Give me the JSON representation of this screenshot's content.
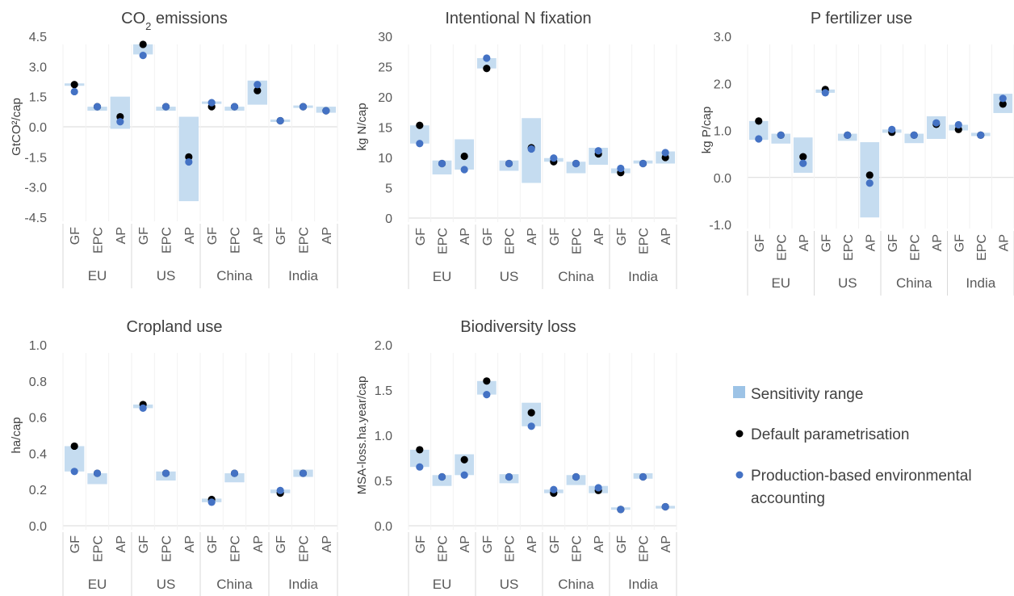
{
  "colors": {
    "range": "#c5dcf0",
    "legend_range": "#9dc3e6",
    "default": "#000000",
    "production": "#4472c4",
    "grid": "#d9d9d9",
    "text": "#595959"
  },
  "legend": {
    "range": "Sensitivity range",
    "default": "Default parametrisation",
    "production_line1": "Production-based environmental",
    "production_line2": "accounting"
  },
  "chart_data": [
    {
      "type": "scatter",
      "title": "CO",
      "title_sub": "2",
      "title_rest": " emissions",
      "ylabel": "GtCO²/cap",
      "ylim": [
        -4.5,
        4.5
      ],
      "yticks": [
        "4.5",
        "3.0",
        "1.5",
        "0.0",
        "-1.5",
        "-3.0",
        "-4.5"
      ],
      "groups": [
        "EU",
        "US",
        "China",
        "India"
      ],
      "categories": [
        "GF",
        "EPC",
        "AP"
      ],
      "sensitivity_range": [
        [
          2.1,
          2.1
        ],
        [
          0.8,
          1.0
        ],
        [
          -0.1,
          1.5
        ],
        [
          3.6,
          4.1
        ],
        [
          0.8,
          1.0
        ],
        [
          -3.7,
          0.5
        ],
        [
          1.2,
          1.2
        ],
        [
          0.8,
          1.0
        ],
        [
          1.1,
          2.3
        ],
        [
          0.3,
          0.3
        ],
        [
          1.0,
          1.0
        ],
        [
          0.7,
          1.0
        ]
      ],
      "default_parametrisation": [
        2.1,
        1.0,
        0.5,
        4.1,
        1.0,
        -1.5,
        1.0,
        1.0,
        1.8,
        0.3,
        1.0,
        0.8
      ],
      "production_based": [
        1.75,
        1.0,
        0.25,
        3.55,
        1.0,
        -1.75,
        1.2,
        1.0,
        2.1,
        0.3,
        1.0,
        0.8
      ]
    },
    {
      "type": "scatter",
      "title": "Intentional N fixation",
      "ylabel": "kg N/cap",
      "ylim": [
        0,
        30
      ],
      "yticks": [
        "30",
        "25",
        "20",
        "15",
        "10",
        "5",
        "0"
      ],
      "groups": [
        "EU",
        "US",
        "China",
        "India"
      ],
      "categories": [
        "GF",
        "EPC",
        "AP"
      ],
      "sensitivity_range": [
        [
          12.3,
          15.3
        ],
        [
          7.2,
          9.5
        ],
        [
          8.0,
          13.0
        ],
        [
          24.7,
          26.4
        ],
        [
          7.8,
          9.5
        ],
        [
          5.8,
          16.5
        ],
        [
          9.3,
          9.9
        ],
        [
          7.4,
          9.3
        ],
        [
          8.8,
          11.6
        ],
        [
          7.4,
          8.2
        ],
        [
          9.0,
          9.5
        ],
        [
          9.0,
          11.0
        ]
      ],
      "default_parametrisation": [
        15.3,
        9.0,
        10.2,
        24.7,
        9.0,
        11.6,
        9.3,
        9.0,
        10.6,
        7.5,
        9.0,
        10.0
      ],
      "production_based": [
        12.3,
        9.0,
        8.0,
        26.4,
        9.0,
        11.4,
        9.9,
        9.0,
        11.1,
        8.2,
        9.0,
        10.8
      ]
    },
    {
      "type": "scatter",
      "title": "P fertilizer use",
      "ylabel": "kg P/cap",
      "ylim": [
        -1.0,
        3.0
      ],
      "yticks": [
        "3.0",
        "2.0",
        "1.0",
        "0.0",
        "-1.0"
      ],
      "groups": [
        "EU",
        "US",
        "China",
        "India"
      ],
      "categories": [
        "GF",
        "EPC",
        "AP"
      ],
      "sensitivity_range": [
        [
          0.8,
          1.2
        ],
        [
          0.72,
          0.93
        ],
        [
          0.1,
          0.85
        ],
        [
          1.8,
          1.87
        ],
        [
          0.78,
          0.93
        ],
        [
          -0.85,
          0.75
        ],
        [
          0.95,
          1.02
        ],
        [
          0.73,
          0.93
        ],
        [
          0.82,
          1.3
        ],
        [
          1.0,
          1.12
        ],
        [
          0.88,
          0.95
        ],
        [
          1.37,
          1.78
        ]
      ],
      "default_parametrisation": [
        1.2,
        0.9,
        0.44,
        1.87,
        0.9,
        0.05,
        0.96,
        0.9,
        1.13,
        1.02,
        0.9,
        1.56
      ],
      "production_based": [
        0.82,
        0.9,
        0.3,
        1.8,
        0.9,
        -0.12,
        1.02,
        0.9,
        1.16,
        1.12,
        0.9,
        1.68
      ]
    },
    {
      "type": "scatter",
      "title": "Cropland use",
      "ylabel": "ha/cap",
      "ylim": [
        0,
        1.0
      ],
      "yticks": [
        "1.0",
        "0.8",
        "0.6",
        "0.4",
        "0.2",
        "0.0"
      ],
      "groups": [
        "EU",
        "US",
        "China",
        "India"
      ],
      "categories": [
        "GF",
        "EPC",
        "AP"
      ],
      "sensitivity_range": [
        [
          0.3,
          0.44
        ],
        [
          0.23,
          0.29
        ],
        [
          null,
          null
        ],
        [
          0.65,
          0.67
        ],
        [
          0.25,
          0.3
        ],
        [
          null,
          null
        ],
        [
          0.13,
          0.15
        ],
        [
          0.24,
          0.29
        ],
        [
          null,
          null
        ],
        [
          0.18,
          0.2
        ],
        [
          0.27,
          0.31
        ],
        [
          null,
          null
        ]
      ],
      "default_parametrisation": [
        0.44,
        0.29,
        null,
        0.67,
        0.29,
        null,
        0.145,
        0.29,
        null,
        0.18,
        0.29,
        null
      ],
      "production_based": [
        0.3,
        0.29,
        null,
        0.65,
        0.29,
        null,
        0.13,
        0.29,
        null,
        0.195,
        0.29,
        null
      ]
    },
    {
      "type": "scatter",
      "title": "Biodiversity loss",
      "ylabel": "MSA-loss.ha.year/cap",
      "ylim": [
        0,
        2.0
      ],
      "yticks": [
        "2.0",
        "1.5",
        "1.0",
        "0.5",
        "0.0"
      ],
      "groups": [
        "EU",
        "US",
        "China",
        "India"
      ],
      "categories": [
        "GF",
        "EPC",
        "AP"
      ],
      "sensitivity_range": [
        [
          0.65,
          0.84
        ],
        [
          0.44,
          0.56
        ],
        [
          0.56,
          0.79
        ],
        [
          1.45,
          1.6
        ],
        [
          0.47,
          0.57
        ],
        [
          1.1,
          1.36
        ],
        [
          0.36,
          0.4
        ],
        [
          0.45,
          0.56
        ],
        [
          0.36,
          0.44
        ],
        [
          0.18,
          0.19
        ],
        [
          0.52,
          0.58
        ],
        [
          0.19,
          0.22
        ]
      ],
      "default_parametrisation": [
        0.84,
        0.54,
        0.73,
        1.6,
        0.54,
        1.25,
        0.36,
        0.54,
        0.39,
        0.18,
        0.54,
        0.21
      ],
      "production_based": [
        0.65,
        0.54,
        0.56,
        1.45,
        0.54,
        1.1,
        0.4,
        0.54,
        0.42,
        0.18,
        0.54,
        0.21
      ]
    }
  ]
}
